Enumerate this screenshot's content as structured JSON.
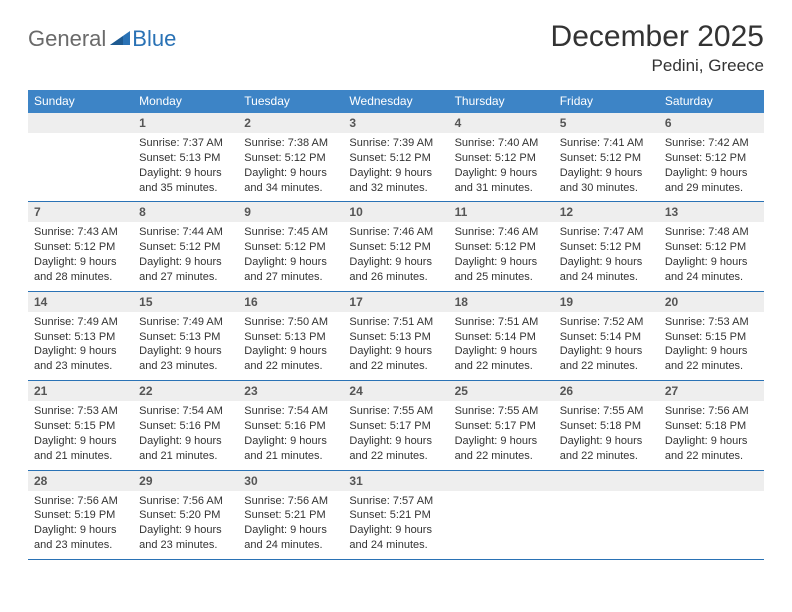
{
  "logo": {
    "text1": "General",
    "text2": "Blue"
  },
  "title": "December 2025",
  "location": "Pedini, Greece",
  "headerColor": "#3d84c6",
  "borderColor": "#2a72b5",
  "dayNames": [
    "Sunday",
    "Monday",
    "Tuesday",
    "Wednesday",
    "Thursday",
    "Friday",
    "Saturday"
  ],
  "weeks": [
    [
      {
        "n": "",
        "lines": []
      },
      {
        "n": "1",
        "lines": [
          "Sunrise: 7:37 AM",
          "Sunset: 5:13 PM",
          "Daylight: 9 hours",
          "and 35 minutes."
        ]
      },
      {
        "n": "2",
        "lines": [
          "Sunrise: 7:38 AM",
          "Sunset: 5:12 PM",
          "Daylight: 9 hours",
          "and 34 minutes."
        ]
      },
      {
        "n": "3",
        "lines": [
          "Sunrise: 7:39 AM",
          "Sunset: 5:12 PM",
          "Daylight: 9 hours",
          "and 32 minutes."
        ]
      },
      {
        "n": "4",
        "lines": [
          "Sunrise: 7:40 AM",
          "Sunset: 5:12 PM",
          "Daylight: 9 hours",
          "and 31 minutes."
        ]
      },
      {
        "n": "5",
        "lines": [
          "Sunrise: 7:41 AM",
          "Sunset: 5:12 PM",
          "Daylight: 9 hours",
          "and 30 minutes."
        ]
      },
      {
        "n": "6",
        "lines": [
          "Sunrise: 7:42 AM",
          "Sunset: 5:12 PM",
          "Daylight: 9 hours",
          "and 29 minutes."
        ]
      }
    ],
    [
      {
        "n": "7",
        "lines": [
          "Sunrise: 7:43 AM",
          "Sunset: 5:12 PM",
          "Daylight: 9 hours",
          "and 28 minutes."
        ]
      },
      {
        "n": "8",
        "lines": [
          "Sunrise: 7:44 AM",
          "Sunset: 5:12 PM",
          "Daylight: 9 hours",
          "and 27 minutes."
        ]
      },
      {
        "n": "9",
        "lines": [
          "Sunrise: 7:45 AM",
          "Sunset: 5:12 PM",
          "Daylight: 9 hours",
          "and 27 minutes."
        ]
      },
      {
        "n": "10",
        "lines": [
          "Sunrise: 7:46 AM",
          "Sunset: 5:12 PM",
          "Daylight: 9 hours",
          "and 26 minutes."
        ]
      },
      {
        "n": "11",
        "lines": [
          "Sunrise: 7:46 AM",
          "Sunset: 5:12 PM",
          "Daylight: 9 hours",
          "and 25 minutes."
        ]
      },
      {
        "n": "12",
        "lines": [
          "Sunrise: 7:47 AM",
          "Sunset: 5:12 PM",
          "Daylight: 9 hours",
          "and 24 minutes."
        ]
      },
      {
        "n": "13",
        "lines": [
          "Sunrise: 7:48 AM",
          "Sunset: 5:12 PM",
          "Daylight: 9 hours",
          "and 24 minutes."
        ]
      }
    ],
    [
      {
        "n": "14",
        "lines": [
          "Sunrise: 7:49 AM",
          "Sunset: 5:13 PM",
          "Daylight: 9 hours",
          "and 23 minutes."
        ]
      },
      {
        "n": "15",
        "lines": [
          "Sunrise: 7:49 AM",
          "Sunset: 5:13 PM",
          "Daylight: 9 hours",
          "and 23 minutes."
        ]
      },
      {
        "n": "16",
        "lines": [
          "Sunrise: 7:50 AM",
          "Sunset: 5:13 PM",
          "Daylight: 9 hours",
          "and 22 minutes."
        ]
      },
      {
        "n": "17",
        "lines": [
          "Sunrise: 7:51 AM",
          "Sunset: 5:13 PM",
          "Daylight: 9 hours",
          "and 22 minutes."
        ]
      },
      {
        "n": "18",
        "lines": [
          "Sunrise: 7:51 AM",
          "Sunset: 5:14 PM",
          "Daylight: 9 hours",
          "and 22 minutes."
        ]
      },
      {
        "n": "19",
        "lines": [
          "Sunrise: 7:52 AM",
          "Sunset: 5:14 PM",
          "Daylight: 9 hours",
          "and 22 minutes."
        ]
      },
      {
        "n": "20",
        "lines": [
          "Sunrise: 7:53 AM",
          "Sunset: 5:15 PM",
          "Daylight: 9 hours",
          "and 22 minutes."
        ]
      }
    ],
    [
      {
        "n": "21",
        "lines": [
          "Sunrise: 7:53 AM",
          "Sunset: 5:15 PM",
          "Daylight: 9 hours",
          "and 21 minutes."
        ]
      },
      {
        "n": "22",
        "lines": [
          "Sunrise: 7:54 AM",
          "Sunset: 5:16 PM",
          "Daylight: 9 hours",
          "and 21 minutes."
        ]
      },
      {
        "n": "23",
        "lines": [
          "Sunrise: 7:54 AM",
          "Sunset: 5:16 PM",
          "Daylight: 9 hours",
          "and 21 minutes."
        ]
      },
      {
        "n": "24",
        "lines": [
          "Sunrise: 7:55 AM",
          "Sunset: 5:17 PM",
          "Daylight: 9 hours",
          "and 22 minutes."
        ]
      },
      {
        "n": "25",
        "lines": [
          "Sunrise: 7:55 AM",
          "Sunset: 5:17 PM",
          "Daylight: 9 hours",
          "and 22 minutes."
        ]
      },
      {
        "n": "26",
        "lines": [
          "Sunrise: 7:55 AM",
          "Sunset: 5:18 PM",
          "Daylight: 9 hours",
          "and 22 minutes."
        ]
      },
      {
        "n": "27",
        "lines": [
          "Sunrise: 7:56 AM",
          "Sunset: 5:18 PM",
          "Daylight: 9 hours",
          "and 22 minutes."
        ]
      }
    ],
    [
      {
        "n": "28",
        "lines": [
          "Sunrise: 7:56 AM",
          "Sunset: 5:19 PM",
          "Daylight: 9 hours",
          "and 23 minutes."
        ]
      },
      {
        "n": "29",
        "lines": [
          "Sunrise: 7:56 AM",
          "Sunset: 5:20 PM",
          "Daylight: 9 hours",
          "and 23 minutes."
        ]
      },
      {
        "n": "30",
        "lines": [
          "Sunrise: 7:56 AM",
          "Sunset: 5:21 PM",
          "Daylight: 9 hours",
          "and 24 minutes."
        ]
      },
      {
        "n": "31",
        "lines": [
          "Sunrise: 7:57 AM",
          "Sunset: 5:21 PM",
          "Daylight: 9 hours",
          "and 24 minutes."
        ]
      },
      {
        "n": "",
        "lines": []
      },
      {
        "n": "",
        "lines": []
      },
      {
        "n": "",
        "lines": []
      }
    ]
  ]
}
